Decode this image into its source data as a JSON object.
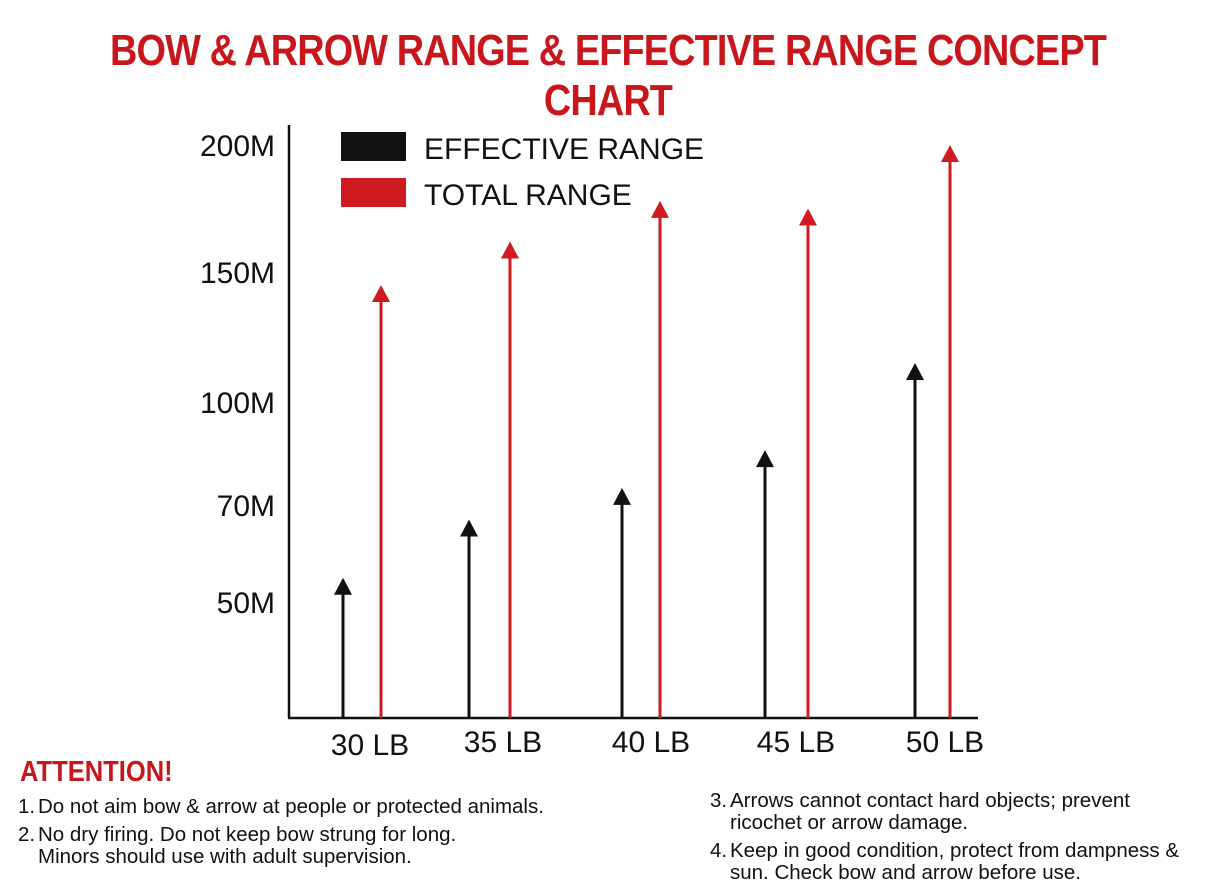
{
  "title": "BOW & ARROW RANGE & EFFECTIVE RANGE CONCEPT CHART",
  "colors": {
    "effective": "#111111",
    "total": "#cf1b20",
    "title": "#c8171c"
  },
  "chart_data": {
    "type": "bar",
    "title": "BOW & ARROW RANGE & EFFECTIVE RANGE CONCEPT CHART",
    "categories": [
      "30 LB",
      "35 LB",
      "40 LB",
      "45 LB",
      "50 LB"
    ],
    "y_ticks": [
      {
        "value": 50,
        "label": "50M"
      },
      {
        "value": 70,
        "label": "70M"
      },
      {
        "value": 100,
        "label": "100M"
      },
      {
        "value": 150,
        "label": "150M"
      },
      {
        "value": 200,
        "label": "200M"
      }
    ],
    "series": [
      {
        "name": "EFFECTIVE RANGE",
        "values": [
          55,
          67,
          75,
          86,
          115
        ]
      },
      {
        "name": "TOTAL RANGE",
        "values": [
          145,
          162,
          178,
          175,
          200
        ]
      }
    ],
    "legend_position": "top-left",
    "grid": false
  },
  "attention": {
    "heading": "ATTENTION!",
    "left_notes": [
      {
        "num": "1.",
        "text": "Do not aim bow & arrow at people or protected animals."
      },
      {
        "num": "2.",
        "text": "No dry firing. Do not keep bow strung for long. Minors should use with adult supervision."
      }
    ],
    "right_notes": [
      {
        "num": "3.",
        "text": "Arrows cannot contact hard objects; prevent ricochet or arrow damage."
      },
      {
        "num": "4.",
        "text": "Keep in good condition, protect from dampness & sun. Check bow and arrow before use."
      }
    ]
  }
}
